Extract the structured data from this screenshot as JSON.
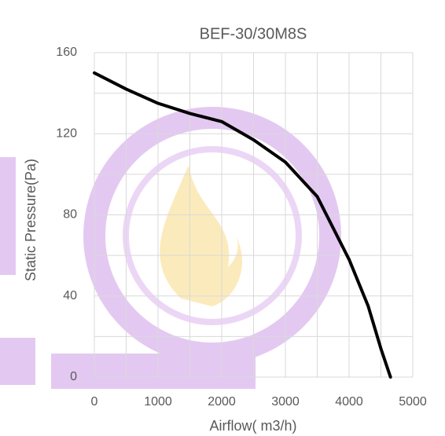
{
  "chart_data": {
    "type": "line",
    "title": "BEF-30/30M8S",
    "x_label": "Airflow( m3/h)",
    "y_label": "Static Pressure(Pa)",
    "x": [
      0,
      500,
      1000,
      1500,
      2000,
      2500,
      3000,
      3500,
      4000,
      4300,
      4500,
      4650
    ],
    "series": [
      {
        "name": "BEF-30/30M8S",
        "color": "#000000",
        "values": [
          150,
          142,
          135,
          130,
          126,
          117,
          106,
          89,
          58,
          35,
          14,
          0
        ]
      }
    ],
    "xlim": [
      0,
      5000
    ],
    "xticks": [
      0,
      1000,
      2000,
      3000,
      4000,
      5000
    ],
    "ylim": [
      0,
      160
    ],
    "yticks": [
      0,
      40,
      80,
      120,
      160
    ],
    "grid": true
  }
}
